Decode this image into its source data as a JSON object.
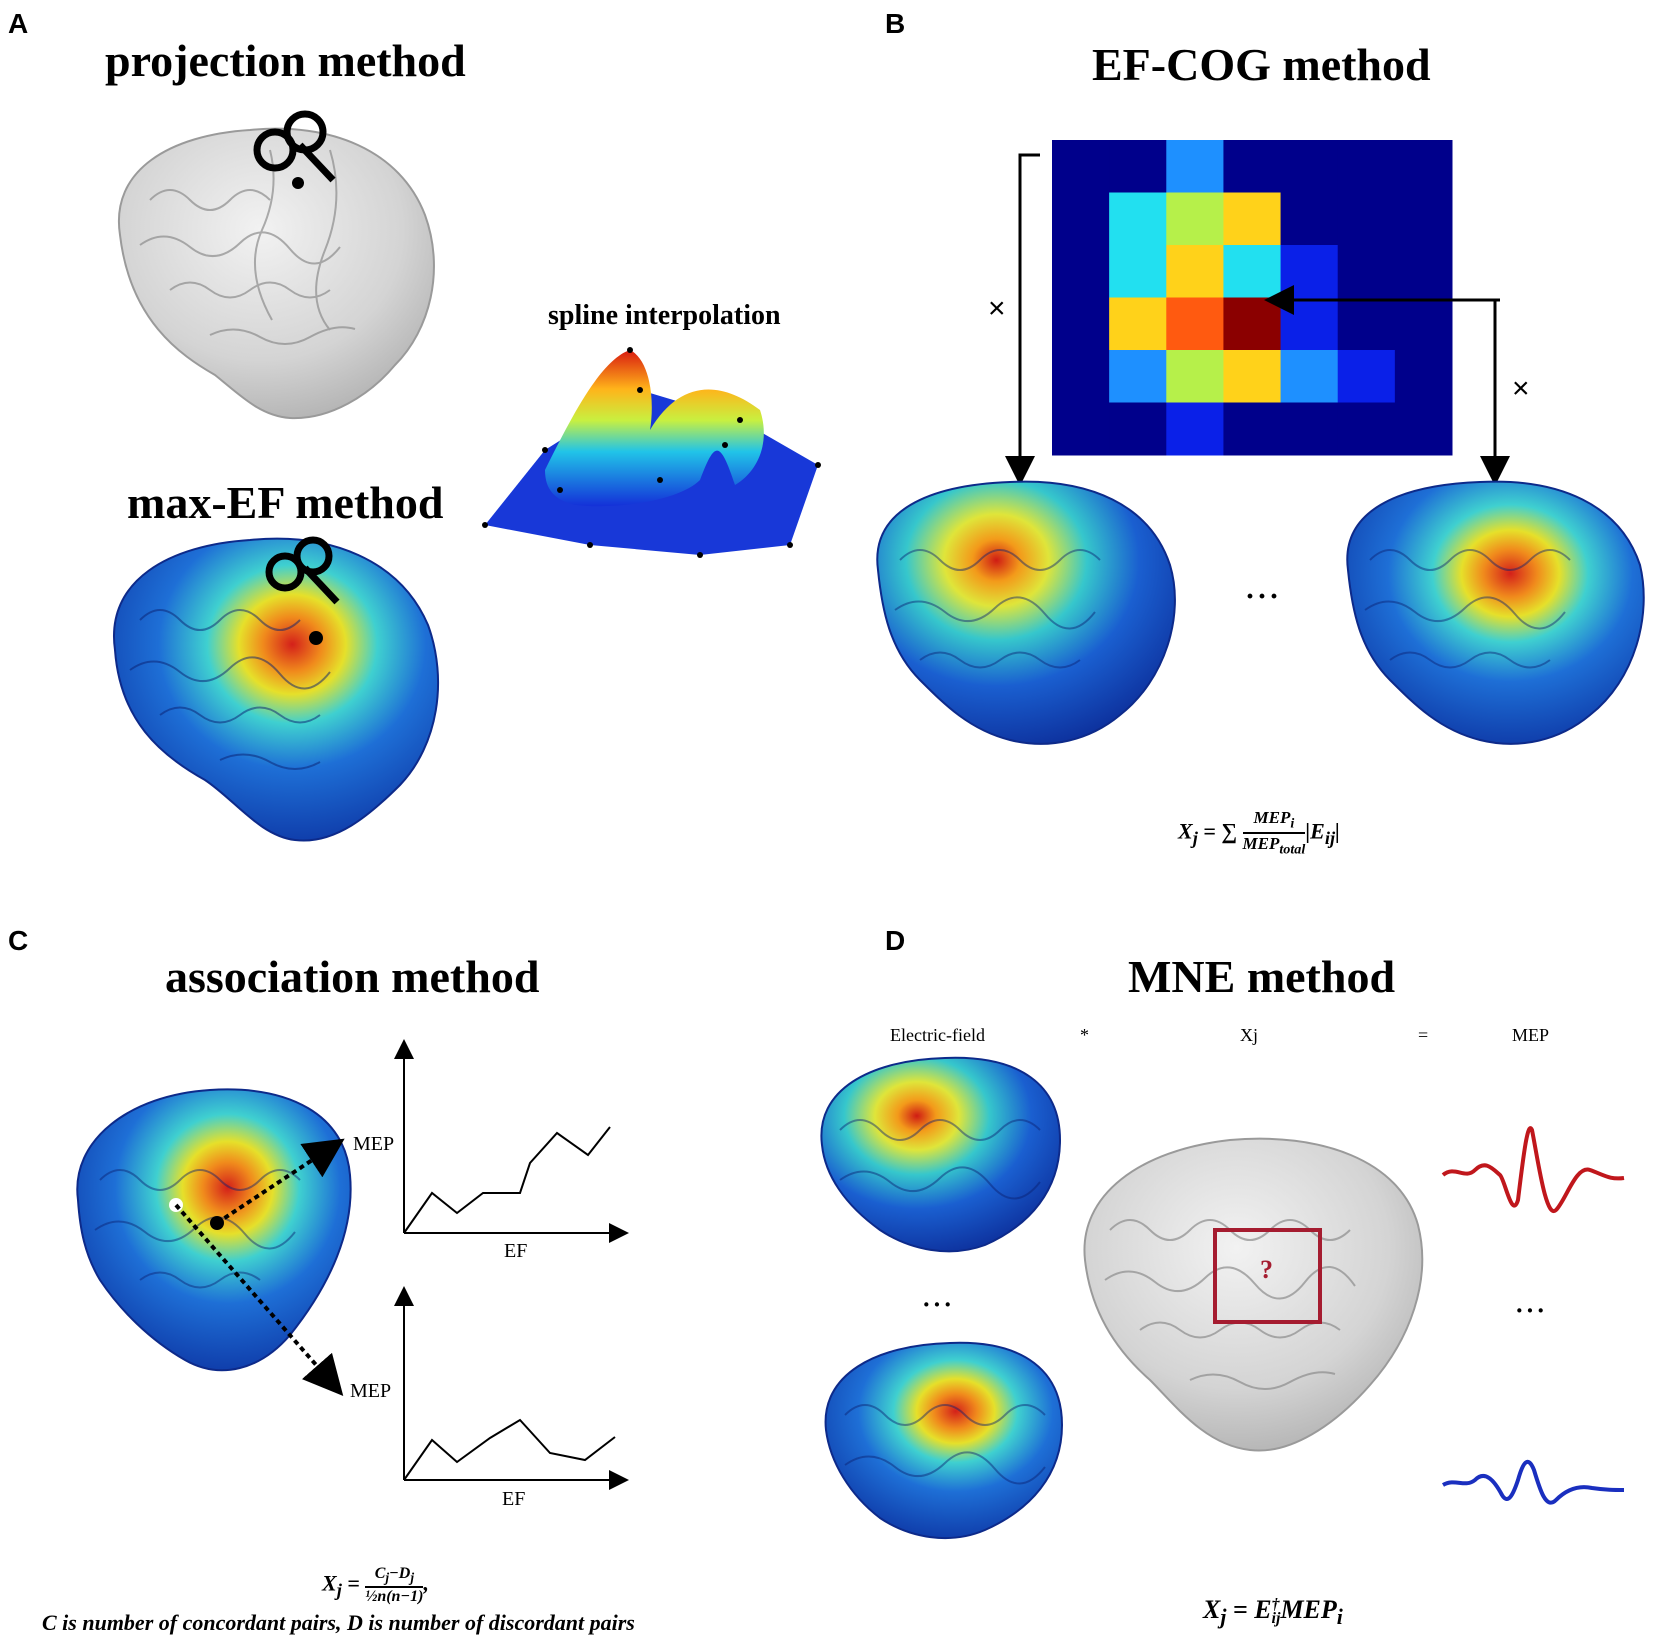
{
  "panels": {
    "A": {
      "letter": "A",
      "title_projection": "projection method",
      "title_maxef": "max-EF method",
      "spline_label": "spline interpolation"
    },
    "B": {
      "letter": "B",
      "title": "EF-COG method",
      "times_left": "×",
      "times_right": "×",
      "ellipsis": "···",
      "formula": {
        "lhs": "X",
        "lhs_sub": "j",
        "eq": " = ∑",
        "num": "MEP",
        "num_sub": "i",
        "den": "MEP",
        "den_sub": "total",
        "tail": "|E",
        "tail_sub": "ij",
        "tail_end": "|"
      }
    },
    "C": {
      "letter": "C",
      "title": "association method",
      "chart_top": {
        "ylabel": "MEP",
        "xlabel": "EF"
      },
      "chart_bottom": {
        "ylabel": "MEP",
        "xlabel": "EF"
      },
      "formula": {
        "lhs": "X",
        "lhs_sub": "j",
        "eq": " = ",
        "num": "C",
        "num_sub1": "j",
        "minus": "−D",
        "num_sub2": "j",
        "den": "½n(n−1)",
        "comma": ","
      },
      "note": "C is number of concordant pairs, D is number of discordant pairs"
    },
    "D": {
      "letter": "D",
      "title": "MNE method",
      "header_ef": "Electric-field",
      "header_star": "*",
      "header_xj": "Xj",
      "header_eq": "=",
      "header_mep": "MEP",
      "question": "?",
      "ellipsis_left": "···",
      "ellipsis_right": "···",
      "formula": {
        "lhs": "X",
        "lhs_sub": "j",
        "eq": " = E",
        "sup": "†",
        "sub": "ij",
        "tail": "MEP",
        "tail_sub": "i"
      }
    }
  },
  "colors": {
    "heat_dark": "#00008b",
    "wave_red": "#c0171c",
    "wave_blue": "#1a2fbf",
    "box_red": "#a51c30",
    "brain_gray": "#d6d6d6"
  },
  "heatmap_grid": [
    [
      0,
      0,
      0.35,
      0,
      0,
      0,
      0
    ],
    [
      0,
      0.55,
      0.65,
      0.75,
      0.05,
      0,
      0
    ],
    [
      0,
      0.45,
      0.72,
      0.45,
      0.15,
      0,
      0
    ],
    [
      0.1,
      0.72,
      0.85,
      1.0,
      0.15,
      0.08,
      0
    ],
    [
      0,
      0.32,
      0.65,
      0.78,
      0.38,
      0.15,
      0
    ],
    [
      0,
      0,
      0.2,
      0.12,
      0,
      0,
      0
    ]
  ]
}
